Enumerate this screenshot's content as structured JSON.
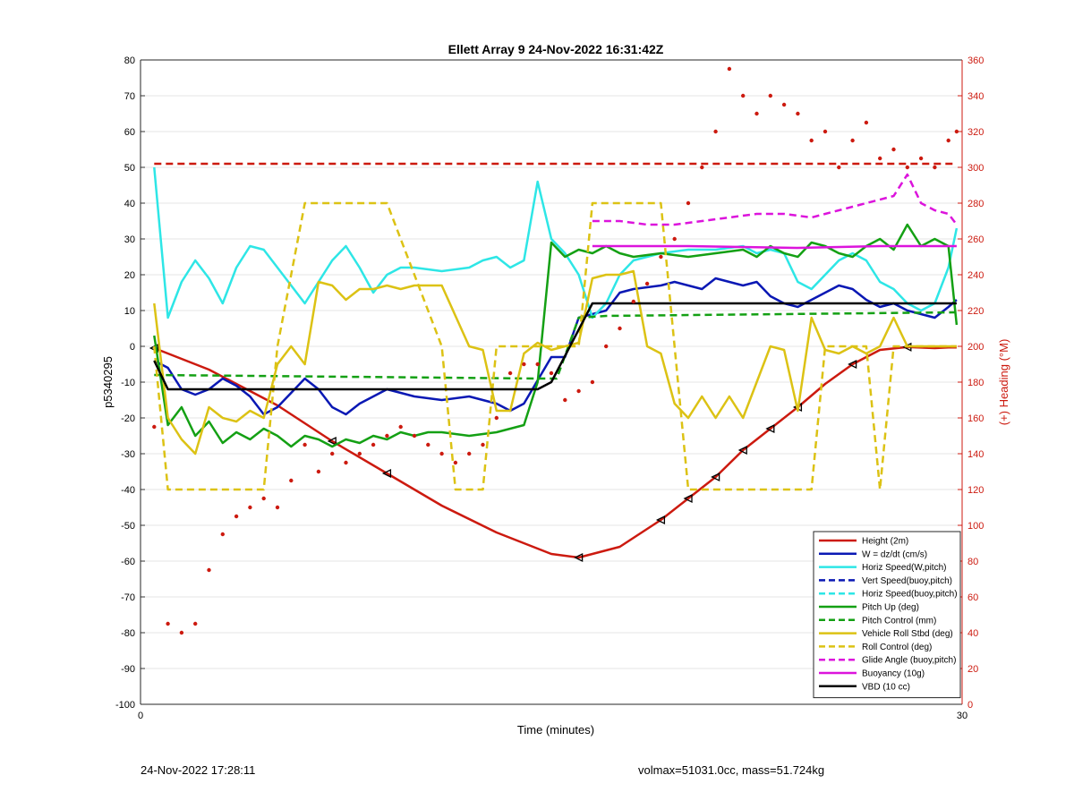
{
  "chart_data": {
    "type": "line",
    "title": "Ellett Array 9 24-Nov-2022 16:31:42Z",
    "xlabel": "Time (minutes)",
    "ylabel": "p5340295",
    "y2label": "(+) Heading (°M)",
    "xlim": [
      0,
      30
    ],
    "ylim": [
      -100,
      80
    ],
    "y2lim": [
      0,
      360
    ],
    "x_ticks": [
      "0",
      "30"
    ],
    "y_ticks": [
      "-100",
      "-90",
      "-80",
      "-70",
      "-60",
      "-50",
      "-40",
      "-30",
      "-20",
      "-10",
      "0",
      "10",
      "20",
      "30",
      "40",
      "50",
      "60",
      "70",
      "80"
    ],
    "y2_ticks": [
      "0",
      "20",
      "40",
      "60",
      "80",
      "100",
      "120",
      "140",
      "160",
      "180",
      "200",
      "220",
      "240",
      "260",
      "280",
      "300",
      "320",
      "340",
      "360"
    ],
    "grid": true,
    "legend_position": "bottom-right",
    "series": [
      {
        "name": "Height (2m)",
        "color": "#cc1a0f",
        "style": "solid",
        "x": [
          0.5,
          2.5,
          5,
          7,
          9,
          11,
          13,
          15,
          16,
          17.5,
          19,
          20,
          21,
          22,
          23,
          24,
          25,
          26,
          27,
          28,
          29,
          29.5,
          29.8
        ],
        "y": [
          -0.5,
          -6.5,
          -16.5,
          -26.5,
          -35.5,
          -44.5,
          -52,
          -58,
          -59,
          -56,
          -48.5,
          -42.5,
          -36.5,
          -29,
          -23,
          -17,
          -10.5,
          -5,
          -1,
          -0.2,
          -0.5,
          -0.3,
          -0.3
        ]
      },
      {
        "name": "W = dz/dt (cm/s)",
        "color": "#0a18b4",
        "style": "solid",
        "x": [
          0.5,
          1,
          1.5,
          2,
          2.5,
          3,
          3.5,
          4,
          4.5,
          5,
          5.5,
          6,
          6.5,
          7,
          7.5,
          8,
          9,
          10,
          11,
          12,
          12.5,
          13,
          13.5,
          14,
          15,
          15.5,
          16,
          16.5,
          17,
          17.5,
          18,
          19,
          19.5,
          20,
          20.5,
          21,
          21.5,
          22,
          22.5,
          23,
          23.5,
          24,
          24.5,
          25,
          25.5,
          26,
          26.5,
          27,
          27.5,
          28,
          28.5,
          29,
          29.5,
          29.8
        ],
        "y": [
          -4,
          -6,
          -12,
          -13.5,
          -12,
          -9,
          -11,
          -14,
          -19,
          -17,
          -13,
          -9,
          -12,
          -17,
          -19,
          -16,
          -12,
          -14,
          -15,
          -14,
          -15,
          -16,
          -18,
          -16,
          -3,
          -3,
          8,
          9,
          10,
          15,
          16,
          17,
          18,
          17,
          16,
          19,
          18,
          17,
          18,
          14,
          12,
          11,
          13,
          15,
          17,
          16,
          13,
          11,
          12,
          10,
          9,
          8,
          11,
          13
        ]
      },
      {
        "name": "Horiz Speed(W,pitch)",
        "color": "#2ee6e6",
        "style": "solid",
        "x": [
          0.5,
          1,
          1.5,
          2,
          2.5,
          3,
          3.5,
          4,
          4.5,
          5,
          5.5,
          6,
          6.5,
          7,
          7.5,
          8,
          8.5,
          9,
          9.5,
          10,
          11,
          12,
          12.5,
          13,
          13.5,
          14,
          14.5,
          15,
          15.5,
          16,
          16.5,
          17,
          17.5,
          18,
          19,
          20,
          21,
          22,
          22.5,
          23,
          23.5,
          24,
          24.5,
          25,
          25.5,
          26,
          26.5,
          27,
          27.5,
          28,
          28.5,
          29,
          29.5,
          29.8
        ],
        "y": [
          50,
          8,
          18,
          24,
          19,
          12,
          22,
          28,
          27,
          22,
          17,
          12,
          18,
          24,
          28,
          22,
          15,
          20,
          22,
          22,
          21,
          22,
          24,
          25,
          22,
          24,
          46,
          30,
          26,
          20,
          8,
          12,
          20,
          24,
          26,
          27,
          27,
          28,
          26,
          27,
          26,
          18,
          16,
          20,
          24,
          26,
          24,
          18,
          16,
          12,
          10,
          12,
          22,
          33
        ]
      },
      {
        "name": "Vert Speed(buoy,pitch)",
        "color": "#0a18b4",
        "style": "dashed",
        "x": [],
        "y": []
      },
      {
        "name": "Horiz Speed(buoy,pitch)",
        "color": "#2ee6e6",
        "style": "dashed",
        "x": [],
        "y": []
      },
      {
        "name": "Pitch Up (deg)",
        "color": "#14a014",
        "style": "solid",
        "x": [
          0.5,
          1,
          1.5,
          2,
          2.5,
          3,
          3.5,
          4,
          4.5,
          5,
          5.5,
          6,
          6.5,
          7,
          7.5,
          8,
          8.5,
          9,
          9.5,
          10,
          10.5,
          11,
          12,
          13,
          14,
          14.5,
          15,
          15.5,
          16,
          16.5,
          17,
          17.5,
          18,
          19,
          20,
          21,
          22,
          22.5,
          23,
          23.5,
          24,
          24.5,
          25,
          25.5,
          26,
          26.5,
          27,
          27.5,
          28,
          28.5,
          29,
          29.5,
          29.8
        ],
        "y": [
          3,
          -22,
          -17,
          -25,
          -21,
          -27,
          -24,
          -26,
          -23,
          -25,
          -28,
          -25,
          -26,
          -28,
          -26,
          -27,
          -25,
          -26,
          -24,
          -25,
          -24,
          -24,
          -25,
          -24,
          -22,
          -10,
          29,
          25,
          27,
          26,
          28,
          26,
          25,
          26,
          25,
          26,
          27,
          25,
          28,
          26,
          25,
          29,
          28,
          26,
          25,
          28,
          30,
          27,
          34,
          28,
          30,
          28,
          6
        ]
      },
      {
        "name": "Pitch Control (mm)",
        "color": "#14a014",
        "style": "dashed",
        "x": [
          0.5,
          14.5,
          15.2,
          16,
          17,
          29.8
        ],
        "y": [
          -8,
          -9,
          -9,
          8,
          8.5,
          9.5
        ]
      },
      {
        "name": "Vehicle Roll Stbd (deg)",
        "color": "#dcc214",
        "style": "solid",
        "x": [
          0.5,
          1,
          1.5,
          2,
          2.5,
          3,
          3.5,
          4,
          4.5,
          5,
          5.5,
          6,
          6.5,
          7,
          7.5,
          8,
          8.5,
          9,
          9.5,
          10,
          11,
          12,
          12.5,
          13,
          13.5,
          14,
          14.5,
          15,
          15.5,
          16,
          16.5,
          17,
          17.5,
          18,
          18.5,
          19,
          19.5,
          20,
          20.5,
          21,
          21.5,
          22,
          22.5,
          23,
          23.5,
          24,
          24.5,
          25,
          25.5,
          26,
          26.5,
          27,
          27.5,
          28,
          28.5,
          29,
          29.5,
          29.8
        ],
        "y": [
          12,
          -20,
          -26,
          -30,
          -17,
          -20,
          -21,
          -18,
          -20,
          -5,
          0,
          -5,
          18,
          17,
          13,
          16,
          16,
          17,
          16,
          17,
          17,
          0,
          -1,
          -18,
          -18,
          -2,
          1,
          -1,
          0,
          1,
          19,
          20,
          20,
          21,
          0,
          -2,
          -16,
          -20,
          -14,
          -20,
          -14,
          -20,
          -10,
          0,
          -1,
          -18,
          8,
          -1,
          -2,
          0,
          -2,
          0,
          8,
          0,
          0,
          0,
          0,
          0
        ]
      },
      {
        "name": "Roll Control (deg)",
        "color": "#dcc214",
        "style": "dashed",
        "x": [
          0.5,
          1,
          4.5,
          5,
          6,
          9,
          11,
          11.5,
          12.5,
          13,
          14.5,
          15,
          16,
          16.5,
          19,
          19.5,
          20,
          21,
          21.5,
          22,
          24.5,
          25,
          26,
          26.5,
          27,
          27.5,
          28,
          29.8
        ],
        "y": [
          0,
          -40,
          -40,
          0,
          40,
          40,
          0,
          -40,
          -40,
          0,
          0,
          0,
          0,
          40,
          40,
          0,
          -40,
          -40,
          -40,
          -40,
          -40,
          0,
          0,
          0,
          -40,
          0,
          0,
          0
        ]
      },
      {
        "name": "Glide Angle (buoy,pitch)",
        "color": "#dc14dc",
        "style": "dashed",
        "x": [
          16.5,
          17.5,
          18.5,
          19.5,
          20.5,
          21.5,
          22.5,
          23.5,
          24.5,
          25.5,
          26.5,
          27.5,
          28,
          28.5,
          29,
          29.5,
          29.8
        ],
        "y": [
          35,
          35,
          34,
          34,
          35,
          36,
          37,
          37,
          36,
          38,
          40,
          42,
          48,
          40,
          38,
          37,
          34
        ]
      },
      {
        "name": "Buoyancy (10g)",
        "color": "#dc14dc",
        "style": "solid",
        "x": [
          16.5,
          20,
          24,
          27,
          29.8
        ],
        "y": [
          28,
          28,
          27.5,
          28,
          28
        ]
      },
      {
        "name": "VBD (10 cc)",
        "color": "#000000",
        "style": "solid",
        "x": [
          0.5,
          1,
          14.5,
          15,
          16.5,
          29.8
        ],
        "y": [
          -4,
          -12,
          -12,
          -10,
          12,
          12
        ]
      },
      {
        "name": "",
        "color": "#cc1a0f",
        "style": "dashed",
        "axis": "right",
        "x": [
          0.5,
          29.8
        ],
        "y": [
          302,
          302
        ]
      },
      {
        "name": "",
        "color": "#cc1a0f",
        "style": "dots",
        "axis": "right",
        "x": [
          0.5,
          1,
          1.5,
          2,
          2.5,
          3,
          3.5,
          4,
          4.5,
          5,
          5.5,
          6,
          6.5,
          7,
          7.5,
          8,
          8.5,
          9,
          9.5,
          10,
          10.5,
          11,
          11.5,
          12,
          12.5,
          13,
          13.5,
          14,
          14.5,
          15,
          15.5,
          16,
          16.5,
          17,
          17.5,
          18,
          18.5,
          19,
          19.5,
          20,
          20.5,
          21,
          21.5,
          22,
          22.5,
          23,
          23.5,
          24,
          24.5,
          25,
          25.5,
          26,
          26.5,
          27,
          27.5,
          28,
          28.5,
          29,
          29.5,
          29.8
        ],
        "y": [
          155,
          45,
          40,
          45,
          75,
          95,
          105,
          110,
          115,
          110,
          125,
          145,
          130,
          140,
          135,
          140,
          145,
          150,
          155,
          150,
          145,
          140,
          135,
          140,
          145,
          160,
          185,
          190,
          190,
          185,
          170,
          175,
          180,
          200,
          210,
          225,
          235,
          250,
          260,
          280,
          300,
          320,
          355,
          340,
          330,
          340,
          335,
          330,
          315,
          320,
          300,
          315,
          325,
          305,
          310,
          300,
          305,
          300,
          315,
          320
        ]
      }
    ]
  },
  "legend": {
    "entries": [
      {
        "label": "Height (2m)",
        "color": "#cc1a0f",
        "style": "solid"
      },
      {
        "label": "W = dz/dt (cm/s)",
        "color": "#0a18b4",
        "style": "solid"
      },
      {
        "label": "Horiz Speed(W,pitch)",
        "color": "#2ee6e6",
        "style": "solid"
      },
      {
        "label": "Vert Speed(buoy,pitch)",
        "color": "#0a18b4",
        "style": "dashed"
      },
      {
        "label": "Horiz Speed(buoy,pitch)",
        "color": "#2ee6e6",
        "style": "dashed"
      },
      {
        "label": "Pitch Up (deg)",
        "color": "#14a014",
        "style": "solid"
      },
      {
        "label": "Pitch Control (mm)",
        "color": "#14a014",
        "style": "dashed"
      },
      {
        "label": "Vehicle Roll Stbd (deg)",
        "color": "#dcc214",
        "style": "solid"
      },
      {
        "label": "Roll Control (deg)",
        "color": "#dcc214",
        "style": "dashed"
      },
      {
        "label": "Glide Angle (buoy,pitch)",
        "color": "#dc14dc",
        "style": "dashed"
      },
      {
        "label": "Buoyancy (10g)",
        "color": "#dc14dc",
        "style": "solid"
      },
      {
        "label": "VBD (10 cc)",
        "color": "#000000",
        "style": "solid"
      }
    ]
  },
  "footer": {
    "left": "24-Nov-2022 17:28:11",
    "right": "volmax=51031.0cc, mass=51.724kg"
  }
}
